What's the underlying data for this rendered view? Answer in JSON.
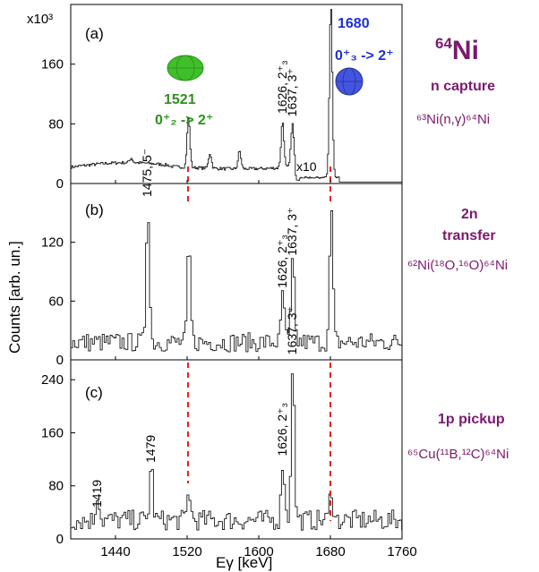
{
  "chart_data": [
    {
      "type": "line",
      "panel_label": "(a)",
      "scale_label": "x10³",
      "yticks": [
        0,
        80,
        160
      ],
      "ylim": [
        0,
        240
      ],
      "xlim": [
        1390,
        1760
      ],
      "peaks": [
        {
          "x": 1457,
          "h": 6
        },
        {
          "x": 1521,
          "h": 66
        },
        {
          "x": 1545,
          "h": 20
        },
        {
          "x": 1578,
          "h": 24
        },
        {
          "x": 1626,
          "h": 62
        },
        {
          "x": 1637,
          "h": 58
        },
        {
          "x": 1680,
          "h": 232
        }
      ],
      "baseline": 22,
      "annotations": [
        {
          "text": "1626, 2⁺₃",
          "x": 1626
        },
        {
          "text": "1637, 3⁺",
          "x": 1637
        },
        {
          "text": "x10",
          "x": 1650
        }
      ],
      "callout_1521": {
        "energy": "1521",
        "transition": "0⁺₂ -> 2⁺",
        "color": "#2f8f1e"
      },
      "callout_1680": {
        "energy": "1680",
        "transition": "0⁺₃ -> 2⁺",
        "color": "#1f2fd0"
      }
    },
    {
      "type": "line",
      "panel_label": "(b)",
      "yticks": [
        0,
        60,
        120
      ],
      "ylim": [
        0,
        180
      ],
      "xlim": [
        1390,
        1760
      ],
      "baseline": 14,
      "peaks": [
        {
          "x": 1475,
          "h": 145
        },
        {
          "x": 1521,
          "h": 98
        },
        {
          "x": 1626,
          "h": 52
        },
        {
          "x": 1637,
          "h": 85
        },
        {
          "x": 1680,
          "h": 135
        }
      ],
      "annotations": [
        {
          "text": "1475, 5⁻",
          "x": 1475
        },
        {
          "text": "1626, 2⁺₃",
          "x": 1626
        },
        {
          "text": "1637, 3⁺",
          "x": 1637
        }
      ]
    },
    {
      "type": "line",
      "panel_label": "(c)",
      "yticks": [
        0,
        80,
        160,
        240
      ],
      "ylim": [
        0,
        270
      ],
      "xlim": [
        1390,
        1760
      ],
      "xticks": [
        1440,
        1520,
        1600,
        1680,
        1760
      ],
      "baseline": 22,
      "peaks": [
        {
          "x": 1419,
          "h": 42
        },
        {
          "x": 1479,
          "h": 85
        },
        {
          "x": 1521,
          "h": 45
        },
        {
          "x": 1626,
          "h": 92
        },
        {
          "x": 1637,
          "h": 245
        },
        {
          "x": 1680,
          "h": 50
        }
      ],
      "annotations": [
        {
          "text": "1419",
          "x": 1419
        },
        {
          "text": "1479",
          "x": 1479
        },
        {
          "text": "1626, 2⁺₃",
          "x": 1626
        },
        {
          "text": "1637, 3⁺",
          "x": 1637
        }
      ]
    }
  ],
  "axes": {
    "ylabel": "Counts [arb. un.]",
    "xlabel": "Eγ [keV]"
  },
  "dashed_lines_keV": [
    1521,
    1680
  ],
  "side": {
    "isotope_mass": "64",
    "isotope_symbol": "Ni",
    "reaction_a_title": "n capture",
    "reaction_a": "⁶³Ni(n,γ)⁶⁴Ni",
    "reaction_b_title_1": "2n",
    "reaction_b_title_2": "transfer",
    "reaction_b": "⁶²Ni(¹⁸O,¹⁶O)⁶⁴Ni",
    "reaction_c_title": "1p pickup",
    "reaction_c": "⁶⁵Cu(¹¹B,¹²C)⁶⁴Ni",
    "purple": "#7a1a6e"
  }
}
